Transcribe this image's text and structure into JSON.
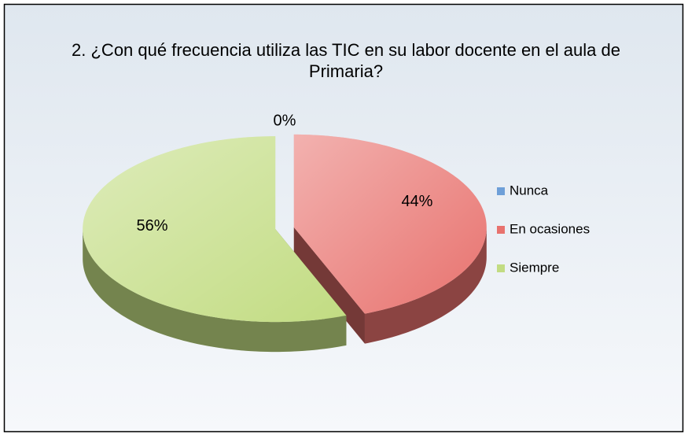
{
  "chart_data": {
    "type": "pie",
    "title": "2. ¿Con qué frecuencia utiliza las TIC en su labor docente en el aula de Primaria?",
    "categories": [
      "Nunca",
      "En ocasiones",
      "Siempre"
    ],
    "values": [
      0,
      44,
      56
    ],
    "value_labels": [
      "0%",
      "44%",
      "56%"
    ],
    "colors": [
      "#6e9fd8",
      "#e8726e",
      "#c2dc82"
    ],
    "legend": "right"
  }
}
